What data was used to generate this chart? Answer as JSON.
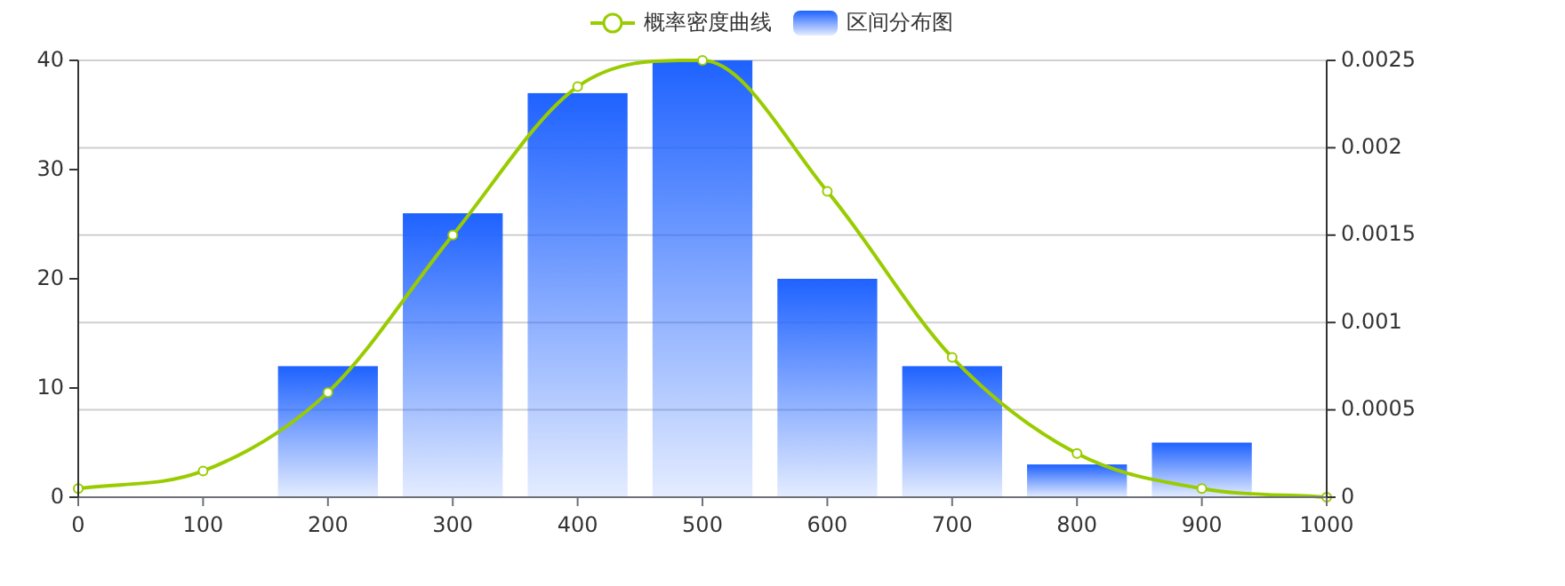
{
  "chart_data": {
    "type": "bar",
    "legend": "top",
    "grid": "y2",
    "xlim": [
      0,
      1000
    ],
    "xticks": [
      0,
      100,
      200,
      300,
      400,
      500,
      600,
      700,
      800,
      900,
      1000
    ],
    "ylim": [
      0,
      40
    ],
    "yticks": [
      0,
      10,
      20,
      30,
      40
    ],
    "y2lim": [
      0,
      0.0025
    ],
    "y2ticks": [
      0,
      0.0005,
      0.001,
      0.0015,
      0.002,
      0.0025
    ],
    "series": [
      {
        "name": "概率密度曲线",
        "type": "line",
        "axis": "y2",
        "color": "#99cc00",
        "marker": "circle",
        "line_style": "solid",
        "x": [
          0,
          100,
          200,
          300,
          400,
          500,
          600,
          700,
          800,
          900,
          1000
        ],
        "values": [
          5e-05,
          0.00015,
          0.0006,
          0.0015,
          0.00235,
          0.0025,
          0.00175,
          0.0008,
          0.00025,
          5e-05,
          0
        ]
      },
      {
        "name": "区间分布图",
        "color": "#1e62ff",
        "x": [
          200,
          300,
          400,
          500,
          600,
          700,
          800,
          900
        ],
        "values": [
          12,
          26,
          37,
          40,
          20,
          12,
          3,
          5
        ]
      }
    ]
  }
}
